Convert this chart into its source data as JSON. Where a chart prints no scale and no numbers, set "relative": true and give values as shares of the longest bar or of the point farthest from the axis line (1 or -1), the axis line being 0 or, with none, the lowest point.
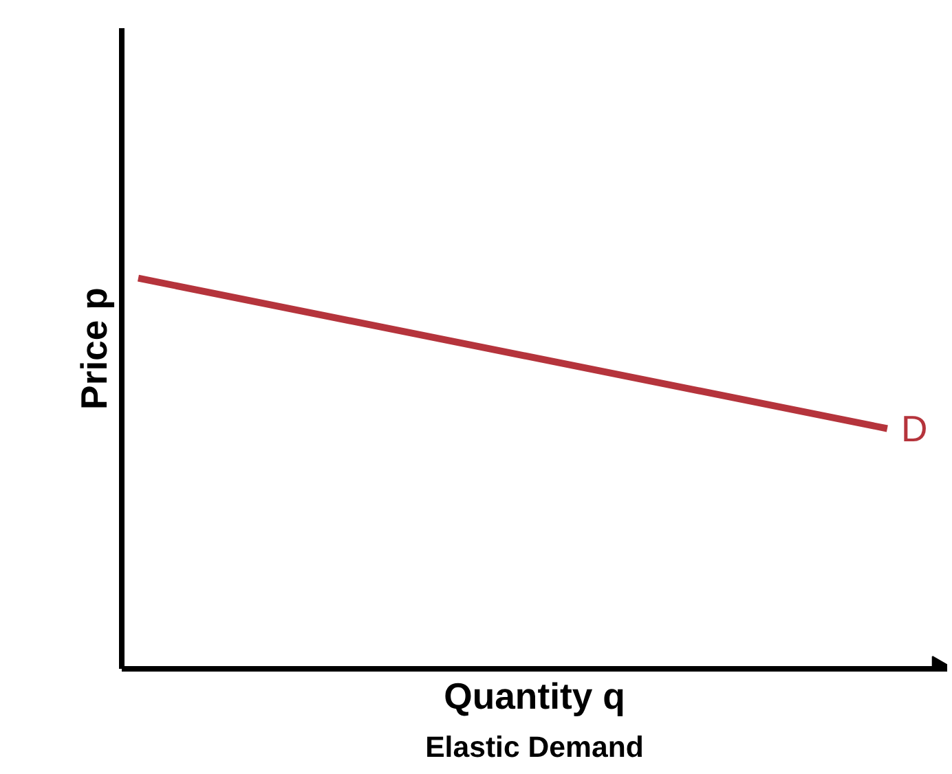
{
  "chart_data": {
    "type": "line",
    "relative": true,
    "xlabel": "Quantity q",
    "ylabel": "Price p",
    "annotations": [
      "Elastic Demand"
    ],
    "categories": [
      null,
      null
    ],
    "series": [
      {
        "name": "D",
        "color": "#b5343c",
        "values": [
          1,
          0.615
        ]
      }
    ],
    "legend": false,
    "marker": "none",
    "line_style": "solid"
  }
}
